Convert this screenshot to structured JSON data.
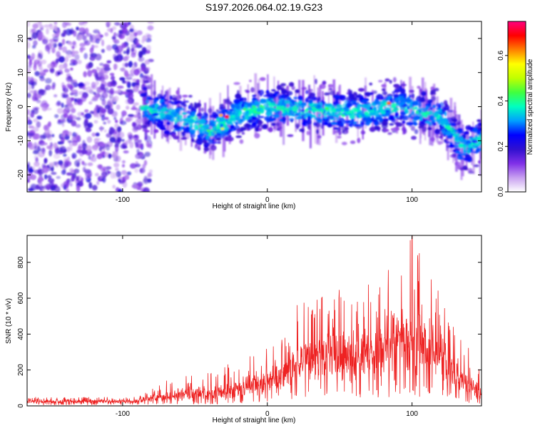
{
  "figure_title": "S197.2026.064.02.19.G23",
  "chart_data": [
    {
      "type": "heatmap",
      "xlabel": "Height of straight line (km)",
      "ylabel": "Frequency (Hz)",
      "xlim": [
        -166,
        148
      ],
      "ylim": [
        -25,
        25
      ],
      "xticks": [
        -100,
        0,
        100
      ],
      "yticks": [
        -20,
        -10,
        0,
        10,
        20
      ],
      "xtick_labels": [
        "-100",
        "0",
        "100"
      ],
      "ytick_labels": [
        "-20",
        "-10",
        "0",
        "10",
        "20"
      ],
      "colorbar": {
        "label": "Normalized spectral amplitude",
        "range": [
          0,
          0.75
        ],
        "ticks": [
          0.0,
          0.2,
          0.4,
          0.6
        ],
        "tick_labels": [
          "0.0",
          "0.2",
          "0.4",
          "0.6"
        ],
        "colors": [
          "#ffffff",
          "#c8a0f0",
          "#8030e8",
          "#3010d0",
          "#0000ff",
          "#00a0ff",
          "#00ffc0",
          "#40ff40",
          "#c0ff00",
          "#ffff00",
          "#ff8000",
          "#ff0000",
          "#ff0080"
        ]
      },
      "ridge_center_hz": [
        {
          "x": -86,
          "y": 0
        },
        {
          "x": -70,
          "y": -2
        },
        {
          "x": -55,
          "y": -4
        },
        {
          "x": -40,
          "y": -7
        },
        {
          "x": -30,
          "y": -5
        },
        {
          "x": -20,
          "y": -2
        },
        {
          "x": 0,
          "y": 0
        },
        {
          "x": 30,
          "y": -1
        },
        {
          "x": 60,
          "y": -2
        },
        {
          "x": 90,
          "y": 0
        },
        {
          "x": 120,
          "y": -3
        },
        {
          "x": 135,
          "y": -12
        },
        {
          "x": 148,
          "y": -10
        }
      ],
      "noise_region_x": [
        -166,
        -86
      ],
      "peak_amplitude_location": {
        "x": -28,
        "y": -3
      }
    },
    {
      "type": "line",
      "xlabel": "Height of straight line (km)",
      "ylabel": "SNR (10 * v/v)",
      "xlim": [
        -166,
        148
      ],
      "ylim": [
        0,
        950
      ],
      "xticks": [
        -100,
        0,
        100
      ],
      "yticks": [
        0,
        200,
        400,
        600,
        800
      ],
      "xtick_labels": [
        "-100",
        "0",
        "100"
      ],
      "ytick_labels": [
        "0",
        "200",
        "400",
        "600",
        "800"
      ],
      "color": "#ee2222",
      "envelope": [
        {
          "x": -166,
          "base": 20,
          "peak": 50
        },
        {
          "x": -90,
          "base": 20,
          "peak": 50
        },
        {
          "x": -80,
          "base": 30,
          "peak": 110
        },
        {
          "x": -60,
          "base": 40,
          "peak": 180
        },
        {
          "x": -30,
          "base": 50,
          "peak": 220
        },
        {
          "x": -10,
          "base": 80,
          "peak": 300
        },
        {
          "x": 10,
          "base": 120,
          "peak": 380
        },
        {
          "x": 20,
          "base": 180,
          "peak": 560
        },
        {
          "x": 40,
          "base": 220,
          "peak": 680
        },
        {
          "x": 60,
          "base": 200,
          "peak": 640
        },
        {
          "x": 80,
          "base": 240,
          "peak": 720
        },
        {
          "x": 100,
          "base": 260,
          "peak": 950
        },
        {
          "x": 120,
          "base": 220,
          "peak": 620
        },
        {
          "x": 135,
          "base": 100,
          "peak": 380
        },
        {
          "x": 148,
          "base": 50,
          "peak": 200
        }
      ],
      "peak_value": {
        "x": 100,
        "y": 950
      }
    }
  ]
}
